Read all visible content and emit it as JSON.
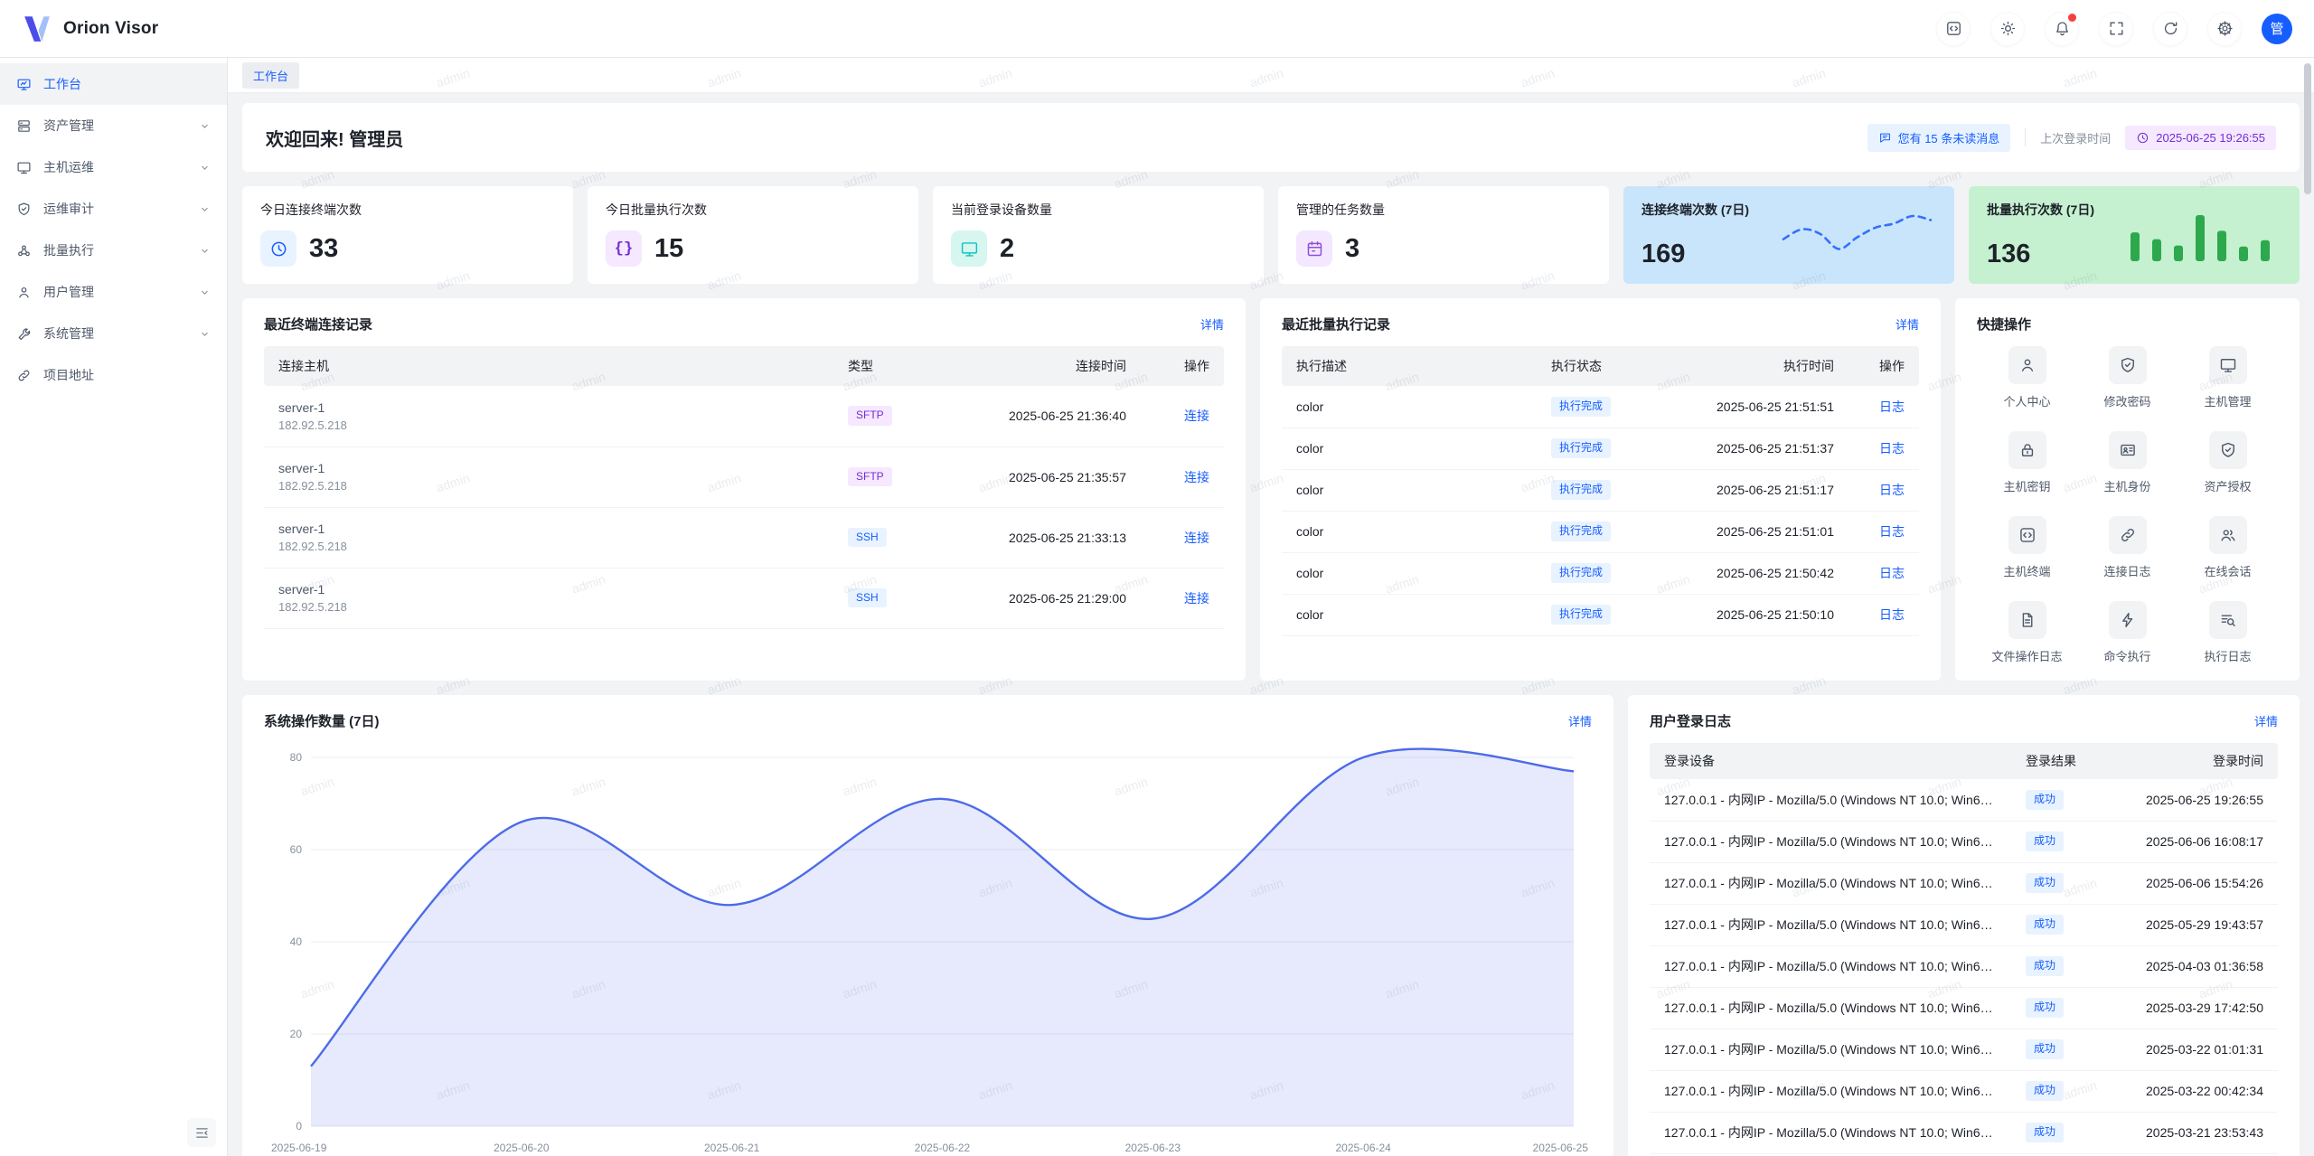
{
  "watermark": {
    "text": "admin"
  },
  "header": {
    "app_title": "Orion Visor",
    "avatar_text": "管",
    "icons": [
      "code-icon",
      "sun-icon",
      "bell-icon",
      "fullscreen-icon",
      "refresh-icon",
      "gear-icon"
    ],
    "has_notification_dot": true
  },
  "sidebar": {
    "items": [
      {
        "label": "工作台",
        "icon": "workbench-icon",
        "active": true,
        "chevron": false
      },
      {
        "label": "资产管理",
        "icon": "assets-icon",
        "active": false,
        "chevron": true
      },
      {
        "label": "主机运维",
        "icon": "host-ops-icon",
        "active": false,
        "chevron": true
      },
      {
        "label": "运维审计",
        "icon": "audit-icon",
        "active": false,
        "chevron": true
      },
      {
        "label": "批量执行",
        "icon": "batch-icon",
        "active": false,
        "chevron": true
      },
      {
        "label": "用户管理",
        "icon": "users-icon",
        "active": false,
        "chevron": true
      },
      {
        "label": "系统管理",
        "icon": "system-icon",
        "active": false,
        "chevron": true
      },
      {
        "label": "项目地址",
        "icon": "link-icon",
        "active": false,
        "chevron": false
      }
    ]
  },
  "breadcrumb": {
    "label": "工作台"
  },
  "welcome": {
    "title": "欢迎回来! 管理员",
    "unread_message": "您有 15 条未读消息",
    "last_login_label": "上次登录时间",
    "last_login_time": "2025-06-25 19:26:55"
  },
  "stat_cards": [
    {
      "title": "今日连接终端次数",
      "value": "33",
      "icon": "clock-icon",
      "theme": "blue"
    },
    {
      "title": "今日批量执行次数",
      "value": "15",
      "icon": "braces-icon",
      "theme": "purple"
    },
    {
      "title": "当前登录设备数量",
      "value": "2",
      "icon": "monitor-icon",
      "theme": "teal"
    },
    {
      "title": "管理的任务数量",
      "value": "3",
      "icon": "task-icon",
      "theme": "violet"
    }
  ],
  "terminal_panel": {
    "title": "最近终端连接记录",
    "detail_link": "详情",
    "columns": [
      "连接主机",
      "类型",
      "连接时间",
      "操作"
    ],
    "rows": [
      {
        "host": "server-1",
        "ip": "182.92.5.218",
        "type": "SFTP",
        "time": "2025-06-25 21:36:40",
        "action": "连接"
      },
      {
        "host": "server-1",
        "ip": "182.92.5.218",
        "type": "SFTP",
        "time": "2025-06-25 21:35:57",
        "action": "连接"
      },
      {
        "host": "server-1",
        "ip": "182.92.5.218",
        "type": "SSH",
        "time": "2025-06-25 21:33:13",
        "action": "连接"
      },
      {
        "host": "server-1",
        "ip": "182.92.5.218",
        "type": "SSH",
        "time": "2025-06-25 21:29:00",
        "action": "连接"
      }
    ]
  },
  "batch_panel": {
    "title": "最近批量执行记录",
    "detail_link": "详情",
    "columns": [
      "执行描述",
      "执行状态",
      "执行时间",
      "操作"
    ],
    "rows": [
      {
        "desc": "color",
        "status": "执行完成",
        "time": "2025-06-25 21:51:51",
        "action": "日志"
      },
      {
        "desc": "color",
        "status": "执行完成",
        "time": "2025-06-25 21:51:37",
        "action": "日志"
      },
      {
        "desc": "color",
        "status": "执行完成",
        "time": "2025-06-25 21:51:17",
        "action": "日志"
      },
      {
        "desc": "color",
        "status": "执行完成",
        "time": "2025-06-25 21:51:01",
        "action": "日志"
      },
      {
        "desc": "color",
        "status": "执行完成",
        "time": "2025-06-25 21:50:42",
        "action": "日志"
      },
      {
        "desc": "color",
        "status": "执行完成",
        "time": "2025-06-25 21:50:10",
        "action": "日志"
      }
    ]
  },
  "quick_actions": {
    "title": "快捷操作",
    "items": [
      {
        "label": "个人中心",
        "icon": "user-icon"
      },
      {
        "label": "修改密码",
        "icon": "shield-check-icon"
      },
      {
        "label": "主机管理",
        "icon": "monitor-icon"
      },
      {
        "label": "主机密钥",
        "icon": "lock-icon"
      },
      {
        "label": "主机身份",
        "icon": "id-card-icon"
      },
      {
        "label": "资产授权",
        "icon": "shield-check-icon"
      },
      {
        "label": "主机终端",
        "icon": "code-square-icon"
      },
      {
        "label": "连接日志",
        "icon": "link-icon"
      },
      {
        "label": "在线会话",
        "icon": "team-icon"
      },
      {
        "label": "文件操作日志",
        "icon": "file-icon"
      },
      {
        "label": "命令执行",
        "icon": "lightning-icon"
      },
      {
        "label": "执行日志",
        "icon": "search-list-icon"
      }
    ]
  },
  "ops_chart_panel": {
    "title": "系统操作数量 (7日)",
    "detail_link": "详情"
  },
  "login_panel": {
    "title": "用户登录日志",
    "detail_link": "详情",
    "columns": [
      "登录设备",
      "登录结果",
      "登录时间"
    ],
    "rows": [
      {
        "device": "127.0.0.1 - 内网IP - Mozilla/5.0 (Windows NT 10.0; Win64;...",
        "result": "成功",
        "time": "2025-06-25 19:26:55"
      },
      {
        "device": "127.0.0.1 - 内网IP - Mozilla/5.0 (Windows NT 10.0; Win64;...",
        "result": "成功",
        "time": "2025-06-06 16:08:17"
      },
      {
        "device": "127.0.0.1 - 内网IP - Mozilla/5.0 (Windows NT 10.0; Win64;...",
        "result": "成功",
        "time": "2025-06-06 15:54:26"
      },
      {
        "device": "127.0.0.1 - 内网IP - Mozilla/5.0 (Windows NT 10.0; Win64;...",
        "result": "成功",
        "time": "2025-05-29 19:43:57"
      },
      {
        "device": "127.0.0.1 - 内网IP - Mozilla/5.0 (Windows NT 10.0; Win64;...",
        "result": "成功",
        "time": "2025-04-03 01:36:58"
      },
      {
        "device": "127.0.0.1 - 内网IP - Mozilla/5.0 (Windows NT 10.0; Win64;...",
        "result": "成功",
        "time": "2025-03-29 17:42:50"
      },
      {
        "device": "127.0.0.1 - 内网IP - Mozilla/5.0 (Windows NT 10.0; Win64;...",
        "result": "成功",
        "time": "2025-03-22 01:01:31"
      },
      {
        "device": "127.0.0.1 - 内网IP - Mozilla/5.0 (Windows NT 10.0; Win64;...",
        "result": "成功",
        "time": "2025-03-22 00:42:34"
      },
      {
        "device": "127.0.0.1 - 内网IP - Mozilla/5.0 (Windows NT 10.0; Win64;...",
        "result": "成功",
        "time": "2025-03-21 23:53:43"
      }
    ]
  },
  "colors": {
    "primary": "#165DFF",
    "purple": "#722ED1",
    "teal": "#0FC6C2",
    "violet": "#8D4EDA",
    "danger_dot": "#F53F3F",
    "spark_line_blue": "#3370FF",
    "spark_bar_green": "#2EA84D",
    "spark_card_blue_bg": "#C9E5FB",
    "spark_card_green_bg": "#C5F1D0",
    "area_line": "#4D6BE8"
  },
  "chart_data": [
    {
      "id": "terminal_7d_sparkline",
      "type": "line",
      "title": "连接终端次数 (7日)",
      "total": "169",
      "values": [
        35,
        52,
        44,
        18,
        38,
        55,
        62,
        75,
        68
      ],
      "style": "dashed",
      "line_color": "#3370FF",
      "note": "decorative sparkline, unlabeled axes"
    },
    {
      "id": "batch_7d_sparkbars",
      "type": "bar",
      "title": "批量执行次数 (7日)",
      "total": "136",
      "values": [
        55,
        42,
        30,
        88,
        58,
        28,
        40
      ],
      "bar_color": "#2EA84D",
      "note": "decorative sparkline, unlabeled axes"
    },
    {
      "id": "ops_7d_area",
      "type": "area",
      "title": "系统操作数量 (7日)",
      "x": [
        "2025-06-19",
        "2025-06-20",
        "2025-06-21",
        "2025-06-22",
        "2025-06-23",
        "2025-06-24",
        "2025-06-25"
      ],
      "values": [
        13,
        66,
        48,
        71,
        45,
        80,
        77
      ],
      "ylim": [
        0,
        80
      ],
      "yticks": [
        0,
        20,
        40,
        60,
        80
      ],
      "grid": true,
      "smooth": true,
      "legend": false,
      "line_color": "#4D6BE8",
      "fill_color": "rgba(77,107,232,0.14)"
    }
  ]
}
